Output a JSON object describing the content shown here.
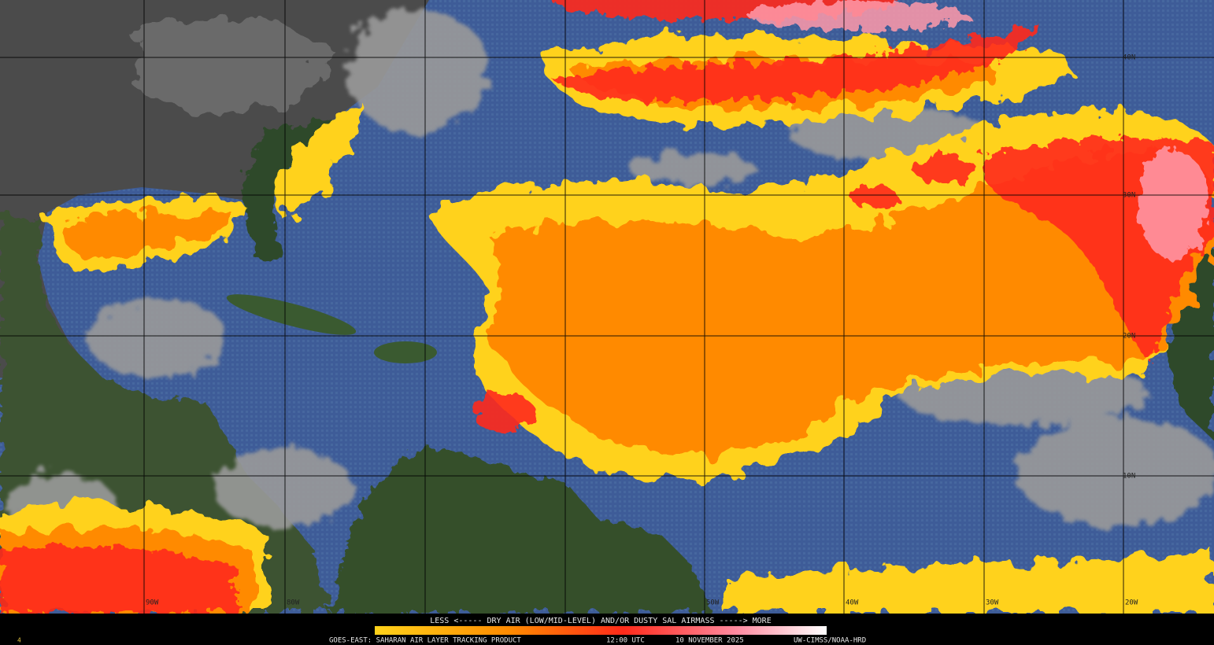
{
  "map": {
    "lat_labels": [
      "40N",
      "30N",
      "20N",
      "10N"
    ],
    "lon_labels": [
      "90W",
      "80W",
      "50W",
      "40W",
      "30W",
      "20W"
    ]
  },
  "legend": {
    "caption": "LESS <----- DRY AIR (LOW/MID-LEVEL) AND/OR DUSTY SAL AIRMASS -----> MORE"
  },
  "footer": {
    "frame": "4",
    "product": "GOES-EAST: SAHARAN AIR LAYER TRACKING PRODUCT",
    "time": "12:00 UTC",
    "date": "10 NOVEMBER 2025",
    "credit": "UW-CIMSS/NOAA-HRD"
  }
}
